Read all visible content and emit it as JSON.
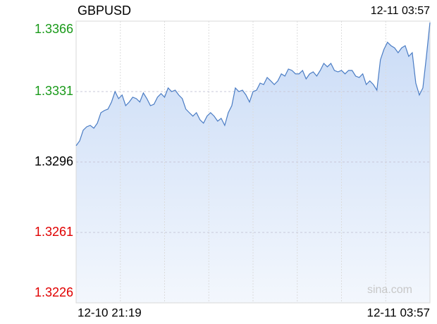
{
  "chart_data": {
    "type": "line",
    "title": "GBPUSD",
    "time": "12-11 03:57",
    "watermark": "sina.com",
    "categories": [
      "12-10 21:19",
      null,
      null,
      null,
      null,
      null,
      null,
      null,
      null,
      null,
      null,
      null,
      null,
      null,
      null,
      null,
      null,
      null,
      null,
      null,
      null,
      null,
      null,
      null,
      null,
      null,
      null,
      null,
      null,
      null,
      null,
      null,
      null,
      null,
      null,
      null,
      null,
      null,
      null,
      null,
      null,
      null,
      null,
      null,
      null,
      null,
      null,
      null,
      null,
      null,
      null,
      null,
      null,
      null,
      null,
      null,
      null,
      null,
      null,
      null,
      null,
      null,
      null,
      null,
      null,
      null,
      null,
      null,
      null,
      null,
      null,
      null,
      null,
      null,
      null,
      null,
      null,
      null,
      null,
      null,
      null,
      null,
      null,
      null,
      null,
      null,
      null,
      null,
      null,
      null,
      null,
      null,
      null,
      null,
      null,
      null,
      null,
      null,
      null,
      null,
      "12-11 03:57"
    ],
    "values": [
      1.33041,
      1.33065,
      1.33118,
      1.33135,
      1.33142,
      1.33128,
      1.33153,
      1.33205,
      1.33216,
      1.33223,
      1.33258,
      1.3331,
      1.33275,
      1.33293,
      1.3324,
      1.33258,
      1.33282,
      1.33275,
      1.33258,
      1.33303,
      1.33275,
      1.3324,
      1.33247,
      1.33282,
      1.333,
      1.33282,
      1.33328,
      1.3331,
      1.33317,
      1.33293,
      1.33275,
      1.33223,
      1.33205,
      1.33188,
      1.33205,
      1.3317,
      1.33153,
      1.33188,
      1.33205,
      1.33188,
      1.33163,
      1.33177,
      1.33142,
      1.33205,
      1.3324,
      1.33328,
      1.3331,
      1.33317,
      1.33293,
      1.33258,
      1.3331,
      1.33317,
      1.33352,
      1.33345,
      1.3338,
      1.33363,
      1.33345,
      1.33363,
      1.33398,
      1.33387,
      1.33422,
      1.33415,
      1.33398,
      1.33398,
      1.33415,
      1.33373,
      1.33398,
      1.33408,
      1.33387,
      1.33415,
      1.3345,
      1.33433,
      1.3345,
      1.33415,
      1.33408,
      1.33415,
      1.33398,
      1.33415,
      1.33415,
      1.33387,
      1.3338,
      1.33398,
      1.33345,
      1.33363,
      1.33345,
      1.33317,
      1.33468,
      1.3352,
      1.33555,
      1.33538,
      1.33527,
      1.33503,
      1.33527,
      1.33538,
      1.33485,
      1.33503,
      1.33352,
      1.33293,
      1.33328,
      1.33485,
      1.33653
    ],
    "color": "#4a7cc4",
    "ylim": [
      1.3226,
      1.3366
    ],
    "yticks": [
      1.3366,
      1.3331,
      1.3296,
      1.3261,
      1.3226
    ],
    "tick_colors": [
      "#1a9a1a",
      "#1a9a1a",
      "#000000",
      "#e00000",
      "#e00000"
    ],
    "xgrid_divisions": 8,
    "grid": true
  }
}
